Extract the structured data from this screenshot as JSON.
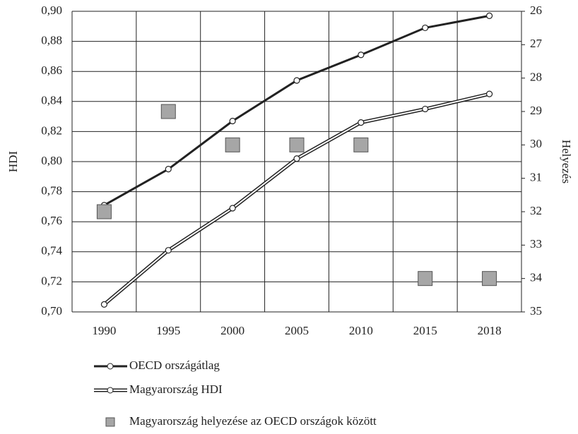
{
  "chart_data": {
    "type": "line",
    "categories": [
      "1990",
      "1995",
      "2000",
      "2005",
      "2010",
      "2015",
      "2018"
    ],
    "series": [
      {
        "name": "OECD országátlag",
        "color": "#222222",
        "values": [
          0.771,
          0.795,
          0.827,
          0.854,
          0.871,
          0.889,
          0.897
        ]
      },
      {
        "name": "Magyarország HDI",
        "color": "#ffffff",
        "values": [
          0.705,
          0.741,
          0.769,
          0.802,
          0.826,
          0.835,
          0.845
        ]
      },
      {
        "name": "Magyarország helyezése az OECD országok között",
        "color": "#a6a6a6",
        "axis": "y2",
        "marker": "square",
        "values": [
          32,
          29,
          30,
          30,
          30,
          34,
          34
        ]
      }
    ],
    "y_label": "HDI",
    "y2_label": "Helyezés",
    "ylim": [
      0.7,
      0.9
    ],
    "yticks": [
      {
        "value": 0.7,
        "label": "0,70"
      },
      {
        "value": 0.72,
        "label": "0,72"
      },
      {
        "value": 0.74,
        "label": "0,74"
      },
      {
        "value": 0.76,
        "label": "0,76"
      },
      {
        "value": 0.78,
        "label": "0,78"
      },
      {
        "value": 0.8,
        "label": "0,80"
      },
      {
        "value": 0.82,
        "label": "0,82"
      },
      {
        "value": 0.84,
        "label": "0,84"
      },
      {
        "value": 0.86,
        "label": "0,86"
      },
      {
        "value": 0.88,
        "label": "0,88"
      },
      {
        "value": 0.9,
        "label": "0,90"
      }
    ],
    "y2lim": [
      35,
      26
    ],
    "y2ticks": [
      26,
      27,
      28,
      29,
      30,
      31,
      32,
      33,
      34,
      35
    ],
    "grid": true,
    "legend": "bottom"
  }
}
